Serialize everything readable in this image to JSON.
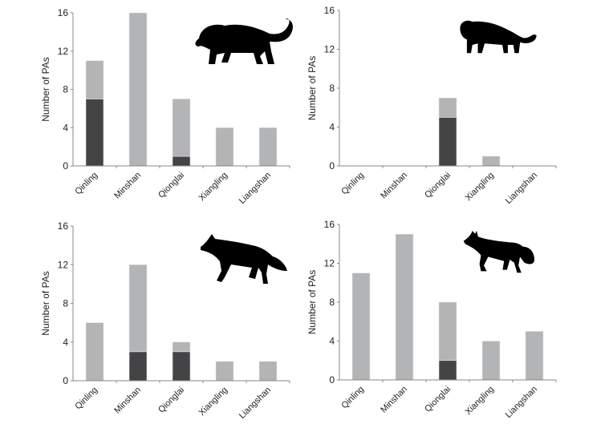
{
  "colors": {
    "total": "#b3b4b6",
    "highlight": "#444446",
    "axis": "#888888"
  },
  "chart_data": [
    {
      "type": "bar",
      "stacked": true,
      "panel": "top-left",
      "icon": "leopard-silhouette",
      "categories": [
        "Qinling",
        "Minshan",
        "Qionglai",
        "Xiangling",
        "Liangshan"
      ],
      "series": [
        {
          "values": [
            7,
            0,
            1,
            0,
            0
          ]
        },
        {
          "values": [
            4,
            16,
            6,
            4,
            4
          ]
        }
      ],
      "totals": [
        11,
        16,
        7,
        4,
        4
      ],
      "ylabel": "Number of PAs",
      "ylim": [
        0,
        16
      ],
      "yticks": [
        0,
        4,
        8,
        12,
        16
      ]
    },
    {
      "type": "bar",
      "stacked": true,
      "panel": "top-right",
      "icon": "golden-cat-silhouette",
      "categories": [
        "Qinling",
        "Minshan",
        "Qionglai",
        "Xiangling",
        "Liangshan"
      ],
      "series": [
        {
          "values": [
            0,
            0,
            5,
            0,
            0
          ]
        },
        {
          "values": [
            0,
            0,
            2,
            1,
            0
          ]
        }
      ],
      "totals": [
        0,
        0,
        7,
        1,
        0
      ],
      "ylabel": "Number of PAs",
      "ylim": [
        0,
        16
      ],
      "yticks": [
        0,
        4,
        8,
        12,
        16
      ]
    },
    {
      "type": "bar",
      "stacked": true,
      "panel": "bottom-left",
      "icon": "dhole-silhouette",
      "categories": [
        "Qinling",
        "Minshan",
        "Qionglai",
        "Xiangling",
        "Liangshan"
      ],
      "series": [
        {
          "values": [
            0,
            3,
            3,
            0,
            0
          ]
        },
        {
          "values": [
            6,
            9,
            1,
            2,
            2
          ]
        }
      ],
      "totals": [
        6,
        12,
        4,
        2,
        2
      ],
      "ylabel": "Number of PAs",
      "ylim": [
        0,
        16
      ],
      "yticks": [
        0,
        4,
        8,
        12,
        16
      ]
    },
    {
      "type": "bar",
      "stacked": true,
      "panel": "bottom-right",
      "icon": "fox-silhouette",
      "categories": [
        "Qinling",
        "Minshan",
        "Qionglai",
        "Xiangling",
        "Liangshan"
      ],
      "series": [
        {
          "values": [
            0,
            0,
            2,
            0,
            0
          ]
        },
        {
          "values": [
            11,
            15,
            6,
            4,
            5
          ]
        }
      ],
      "totals": [
        11,
        15,
        8,
        4,
        5
      ],
      "ylabel": "Number of PAs",
      "ylim": [
        0,
        16
      ],
      "yticks": [
        0,
        4,
        8,
        12,
        16
      ]
    }
  ]
}
